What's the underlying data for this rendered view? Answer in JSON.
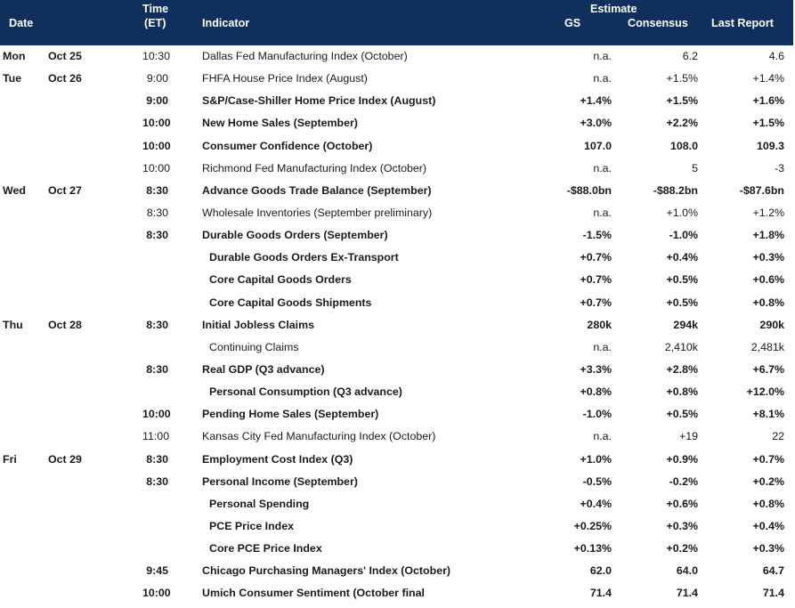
{
  "header": {
    "date": "Date",
    "time_line1": "Time",
    "time_line2": "(ET)",
    "indicator": "Indicator",
    "estimate": "Estimate",
    "gs": "GS",
    "consensus": "Consensus",
    "last_report": "Last Report"
  },
  "rows": [
    {
      "day": "Mon",
      "date": "Oct 25",
      "time": "10:30",
      "indicator": "Dallas Fed Manufacturing Index (October)",
      "gs": "n.a.",
      "consensus": "6.2",
      "last": "4.6",
      "bold": false,
      "indent": false
    },
    {
      "day": "Tue",
      "date": "Oct 26",
      "time": "9:00",
      "indicator": "FHFA House Price Index (August)",
      "gs": "n.a.",
      "consensus": "+1.5%",
      "last": "+1.4%",
      "bold": false,
      "indent": false
    },
    {
      "day": "",
      "date": "",
      "time": "9:00",
      "indicator": "S&P/Case-Shiller Home Price Index (August)",
      "gs": "+1.4%",
      "consensus": "+1.5%",
      "last": "+1.6%",
      "bold": true,
      "indent": false
    },
    {
      "day": "",
      "date": "",
      "time": "10:00",
      "indicator": "New Home Sales (September)",
      "gs": "+3.0%",
      "consensus": "+2.2%",
      "last": "+1.5%",
      "bold": true,
      "indent": false
    },
    {
      "day": "",
      "date": "",
      "time": "10:00",
      "indicator": "Consumer Confidence (October)",
      "gs": "107.0",
      "consensus": "108.0",
      "last": "109.3",
      "bold": true,
      "indent": false
    },
    {
      "day": "",
      "date": "",
      "time": "10:00",
      "indicator": "Richmond Fed Manufacturing Index (October)",
      "gs": "n.a.",
      "consensus": "5",
      "last": "-3",
      "bold": false,
      "indent": false
    },
    {
      "day": "Wed",
      "date": "Oct 27",
      "time": "8:30",
      "indicator": "Advance Goods Trade Balance (September)",
      "gs": "-$88.0bn",
      "consensus": "-$88.2bn",
      "last": "-$87.6bn",
      "bold": true,
      "indent": false
    },
    {
      "day": "",
      "date": "",
      "time": "8:30",
      "indicator": "Wholesale Inventories (September preliminary)",
      "gs": "n.a.",
      "consensus": "+1.0%",
      "last": "+1.2%",
      "bold": false,
      "indent": false
    },
    {
      "day": "",
      "date": "",
      "time": "8:30",
      "indicator": "Durable Goods Orders (September)",
      "gs": "-1.5%",
      "consensus": "-1.0%",
      "last": "+1.8%",
      "bold": true,
      "indent": false
    },
    {
      "day": "",
      "date": "",
      "time": "",
      "indicator": "Durable Goods Orders Ex-Transport",
      "gs": "+0.7%",
      "consensus": "+0.4%",
      "last": "+0.3%",
      "bold": true,
      "indent": true
    },
    {
      "day": "",
      "date": "",
      "time": "",
      "indicator": "Core Capital Goods Orders",
      "gs": "+0.7%",
      "consensus": "+0.5%",
      "last": "+0.6%",
      "bold": true,
      "indent": true
    },
    {
      "day": "",
      "date": "",
      "time": "",
      "indicator": "Core Capital Goods Shipments",
      "gs": "+0.7%",
      "consensus": "+0.5%",
      "last": "+0.8%",
      "bold": true,
      "indent": true
    },
    {
      "day": "Thu",
      "date": "Oct 28",
      "time": "8:30",
      "indicator": "Initial Jobless Claims",
      "gs": "280k",
      "consensus": "294k",
      "last": "290k",
      "bold": true,
      "indent": false
    },
    {
      "day": "",
      "date": "",
      "time": "",
      "indicator": "Continuing Claims",
      "gs": "n.a.",
      "consensus": "2,410k",
      "last": "2,481k",
      "bold": false,
      "indent": true
    },
    {
      "day": "",
      "date": "",
      "time": "8:30",
      "indicator": "Real GDP (Q3 advance)",
      "gs": "+3.3%",
      "consensus": "+2.8%",
      "last": "+6.7%",
      "bold": true,
      "indent": false
    },
    {
      "day": "",
      "date": "",
      "time": "",
      "indicator": "Personal Consumption (Q3 advance)",
      "gs": "+0.8%",
      "consensus": "+0.8%",
      "last": "+12.0%",
      "bold": true,
      "indent": true
    },
    {
      "day": "",
      "date": "",
      "time": "10:00",
      "indicator": "Pending Home Sales (September)",
      "gs": "-1.0%",
      "consensus": "+0.5%",
      "last": "+8.1%",
      "bold": true,
      "indent": false
    },
    {
      "day": "",
      "date": "",
      "time": "11:00",
      "indicator": "Kansas City Fed Manufacturing Index (October)",
      "gs": "n.a.",
      "consensus": "+19",
      "last": "22",
      "bold": false,
      "indent": false
    },
    {
      "day": "Fri",
      "date": "Oct 29",
      "time": "8:30",
      "indicator": "Employment Cost Index (Q3)",
      "gs": "+1.0%",
      "consensus": "+0.9%",
      "last": "+0.7%",
      "bold": true,
      "indent": false
    },
    {
      "day": "",
      "date": "",
      "time": "8:30",
      "indicator": "Personal Income (September)",
      "gs": "-0.5%",
      "consensus": "-0.2%",
      "last": "+0.2%",
      "bold": true,
      "indent": false
    },
    {
      "day": "",
      "date": "",
      "time": "",
      "indicator": "Personal Spending",
      "gs": "+0.4%",
      "consensus": "+0.6%",
      "last": "+0.8%",
      "bold": true,
      "indent": true
    },
    {
      "day": "",
      "date": "",
      "time": "",
      "indicator": "PCE Price Index",
      "gs": "+0.25%",
      "consensus": "+0.3%",
      "last": "+0.4%",
      "bold": true,
      "indent": true
    },
    {
      "day": "",
      "date": "",
      "time": "",
      "indicator": "Core PCE Price Index",
      "gs": "+0.13%",
      "consensus": "+0.2%",
      "last": "+0.3%",
      "bold": true,
      "indent": true
    },
    {
      "day": "",
      "date": "",
      "time": "9:45",
      "indicator": "Chicago Purchasing Managers' Index (October)",
      "gs": "62.0",
      "consensus": "64.0",
      "last": "64.7",
      "bold": true,
      "indent": false
    },
    {
      "day": "",
      "date": "",
      "time": "10:00",
      "indicator": "Umich Consumer Sentiment (October final",
      "gs": "71.4",
      "consensus": "71.4",
      "last": "71.4",
      "bold": true,
      "indent": false
    }
  ],
  "colors": {
    "header_bg": "#0f2f5c",
    "header_text": "#ffffff",
    "body_text": "#1a1a1a"
  }
}
